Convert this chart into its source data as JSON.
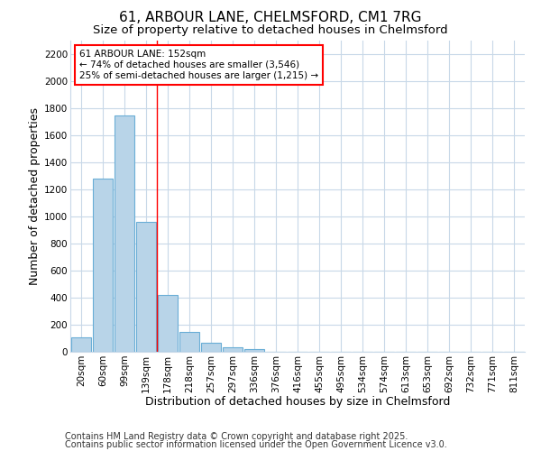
{
  "title_line1": "61, ARBOUR LANE, CHELMSFORD, CM1 7RG",
  "title_line2": "Size of property relative to detached houses in Chelmsford",
  "xlabel": "Distribution of detached houses by size in Chelmsford",
  "ylabel": "Number of detached properties",
  "bar_labels": [
    "20sqm",
    "60sqm",
    "99sqm",
    "139sqm",
    "178sqm",
    "218sqm",
    "257sqm",
    "297sqm",
    "336sqm",
    "376sqm",
    "416sqm",
    "455sqm",
    "495sqm",
    "534sqm",
    "574sqm",
    "613sqm",
    "653sqm",
    "692sqm",
    "732sqm",
    "771sqm",
    "811sqm"
  ],
  "bar_values": [
    110,
    1280,
    1750,
    960,
    420,
    150,
    70,
    35,
    18,
    0,
    0,
    0,
    0,
    0,
    0,
    0,
    0,
    0,
    0,
    0,
    0
  ],
  "bar_color": "#b8d4e8",
  "bar_edge_color": "#6aaed6",
  "bar_edge_width": 0.8,
  "ylim": [
    0,
    2300
  ],
  "yticks": [
    0,
    200,
    400,
    600,
    800,
    1000,
    1200,
    1400,
    1600,
    1800,
    2000,
    2200
  ],
  "red_line_x": 3.5,
  "annotation_text": "61 ARBOUR LANE: 152sqm\n← 74% of detached houses are smaller (3,546)\n25% of semi-detached houses are larger (1,215) →",
  "footer_line1": "Contains HM Land Registry data © Crown copyright and database right 2025.",
  "footer_line2": "Contains public sector information licensed under the Open Government Licence v3.0.",
  "bg_color": "#ffffff",
  "plot_bg_color": "#ffffff",
  "grid_color": "#c8d8e8",
  "title_fontsize": 11,
  "subtitle_fontsize": 9.5,
  "axis_label_fontsize": 9,
  "tick_fontsize": 7.5,
  "annotation_fontsize": 7.5,
  "footer_fontsize": 7
}
